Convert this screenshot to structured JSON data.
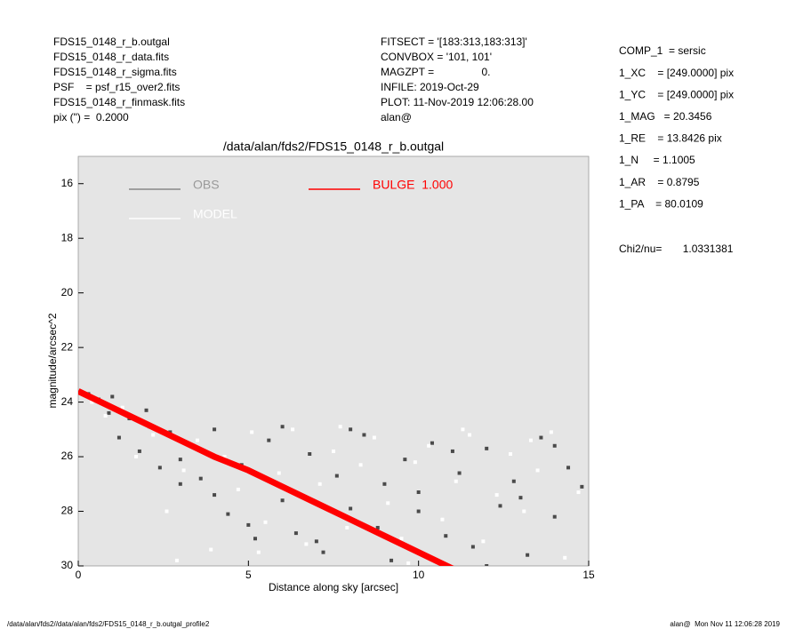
{
  "header": {
    "left": [
      "FDS15_0148_r_b.outgal",
      "FDS15_0148_r_data.fits",
      "FDS15_0148_r_sigma.fits",
      "PSF    = psf_r15_over2.fits",
      "FDS15_0148_r_finmask.fits",
      "pix (\") =  0.2000"
    ],
    "middle": [
      "FITSECT = '[183:313,183:313]'",
      "CONVBOX = '101, 101'",
      "MAGZPT =                0.",
      "INFILE: 2019-Oct-29",
      "PLOT: 11-Nov-2019 12:06:28.00",
      "alan@"
    ],
    "right": [
      "COMP_1  = sersic",
      "1_XC    = [249.0000] pix",
      "1_YC    = [249.0000] pix",
      "1_MAG   = 20.3456",
      "1_RE    = 13.8426 pix",
      "1_N     = 1.1005",
      "1_AR    = 0.8795",
      "1_PA    = 80.0109"
    ],
    "chi2": "Chi2/nu=       1.0331381"
  },
  "footer": {
    "left": "/data/alan/fds2//data/alan/fds2/FDS15_0148_r_b.outgal_profile2",
    "right": "alan@  Mon Nov 11 12:06:28 2019"
  },
  "chart_data": {
    "type": "scatter",
    "title": "/data/alan/fds2/FDS15_0148_r_b.outgal",
    "x_label": "Distance along sky [arcsec]",
    "y_label": "magnitude/arcsec^2",
    "xlim": [
      0,
      15
    ],
    "xticks": [
      0,
      5,
      10,
      15
    ],
    "ylim": [
      30,
      15
    ],
    "yticks": [
      16,
      18,
      20,
      22,
      24,
      26,
      28,
      30
    ],
    "background": "#e5e5e5",
    "series": [
      {
        "name": "OBS",
        "color": "#4a4a4a",
        "kind": "points",
        "x": [
          0.3,
          0.6,
          0.9,
          1.2,
          1.5,
          1.8,
          2.1,
          2.4,
          2.7,
          3.0,
          3.3,
          3.6,
          4.0,
          4.4,
          4.8,
          5.2,
          5.6,
          6.0,
          6.4,
          6.8,
          7.2,
          7.6,
          8.0,
          8.4,
          8.8,
          9.2,
          9.6,
          10.0,
          10.4,
          10.8,
          11.2,
          11.6,
          12.0,
          12.4,
          12.8,
          13.2,
          13.6,
          14.0,
          14.4,
          14.8,
          1,
          2,
          3,
          4,
          5,
          6,
          7,
          8,
          9,
          10,
          11,
          12,
          13,
          14
        ],
        "values": [
          23.7,
          23.9,
          24.4,
          25.3,
          24.6,
          25.8,
          24.9,
          26.4,
          25.1,
          27.0,
          25.6,
          26.8,
          25.0,
          28.1,
          26.3,
          29.0,
          25.4,
          27.6,
          28.8,
          25.9,
          29.5,
          26.7,
          27.9,
          25.2,
          28.6,
          29.8,
          26.1,
          27.3,
          25.5,
          28.9,
          26.6,
          29.3,
          25.7,
          27.8,
          26.9,
          29.6,
          25.3,
          28.2,
          26.4,
          27.1,
          23.8,
          24.3,
          26.1,
          27.4,
          28.5,
          24.9,
          29.1,
          25.0,
          27.0,
          28.0,
          25.8,
          30.0,
          27.5,
          25.6
        ]
      },
      {
        "name": "MODEL",
        "color": "#ffffff",
        "kind": "points",
        "x": [
          0.4,
          0.8,
          1.3,
          1.7,
          2.2,
          2.6,
          3.1,
          3.5,
          3.9,
          4.3,
          4.7,
          5.1,
          5.5,
          5.9,
          6.3,
          6.7,
          7.1,
          7.5,
          7.9,
          8.3,
          8.7,
          9.1,
          9.5,
          9.9,
          10.3,
          10.7,
          11.1,
          11.5,
          11.9,
          12.3,
          12.7,
          13.1,
          13.5,
          13.9,
          14.3,
          14.7,
          2.9,
          5.3,
          7.7,
          9.7,
          11.3,
          13.3
        ],
        "values": [
          24.0,
          24.5,
          24.2,
          26.0,
          25.2,
          28.0,
          26.5,
          25.4,
          29.4,
          26.0,
          27.2,
          25.1,
          28.4,
          26.6,
          25.0,
          29.2,
          27.0,
          25.8,
          28.6,
          26.3,
          25.3,
          27.7,
          29.0,
          26.2,
          25.6,
          28.3,
          26.9,
          25.2,
          29.1,
          27.4,
          25.9,
          28.0,
          26.5,
          25.1,
          29.7,
          27.3,
          29.8,
          29.5,
          24.9,
          29.9,
          25.0,
          25.4
        ]
      },
      {
        "name": "BULGE  1.000",
        "color": "#ff0000",
        "kind": "band",
        "x": [
          0,
          1,
          2,
          3,
          4,
          5,
          6,
          7,
          8,
          9,
          10,
          11
        ],
        "values": [
          23.6,
          24.2,
          24.8,
          25.4,
          26.0,
          26.5,
          27.1,
          27.7,
          28.3,
          28.9,
          29.5,
          30.1
        ]
      }
    ]
  }
}
